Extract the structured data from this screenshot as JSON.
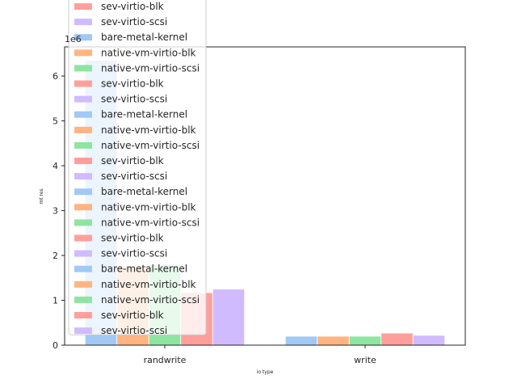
{
  "chart_data": {
    "type": "bar",
    "xlabel": "io type",
    "ylabel": "mt res",
    "offset_label": "1e6",
    "categories": [
      "randwrite",
      "write"
    ],
    "y_ticks": [
      0,
      1,
      2,
      3,
      4,
      5,
      6
    ],
    "ylim": [
      0,
      6.65
    ],
    "y_scale": 1000000,
    "legend_position": "upper-left",
    "series": [
      {
        "name": "bare-metal-kernel",
        "color": "#a1c9f4",
        "values": [
          6.35,
          0.2
        ]
      },
      {
        "name": "native-vm-virtio-blk",
        "color": "#ffb482",
        "values": [
          1.75,
          0.2
        ]
      },
      {
        "name": "native-vm-virtio-scsi",
        "color": "#8de5a1",
        "values": [
          1.8,
          0.2
        ]
      },
      {
        "name": "sev-virtio-blk",
        "color": "#ff9f9b",
        "values": [
          1.17,
          0.27
        ]
      },
      {
        "name": "sev-virtio-scsi",
        "color": "#d0bbff",
        "values": [
          1.25,
          0.22
        ]
      }
    ],
    "legend_entries": [
      {
        "name": "sev-virtio-blk",
        "color": "#ff9f9b"
      },
      {
        "name": "sev-virtio-scsi",
        "color": "#d0bbff"
      },
      {
        "name": "bare-metal-kernel",
        "color": "#a1c9f4"
      },
      {
        "name": "native-vm-virtio-blk",
        "color": "#ffb482"
      },
      {
        "name": "native-vm-virtio-scsi",
        "color": "#8de5a1"
      },
      {
        "name": "sev-virtio-blk",
        "color": "#ff9f9b"
      },
      {
        "name": "sev-virtio-scsi",
        "color": "#d0bbff"
      },
      {
        "name": "bare-metal-kernel",
        "color": "#a1c9f4"
      },
      {
        "name": "native-vm-virtio-blk",
        "color": "#ffb482"
      },
      {
        "name": "native-vm-virtio-scsi",
        "color": "#8de5a1"
      },
      {
        "name": "sev-virtio-blk",
        "color": "#ff9f9b"
      },
      {
        "name": "sev-virtio-scsi",
        "color": "#d0bbff"
      },
      {
        "name": "bare-metal-kernel",
        "color": "#a1c9f4"
      },
      {
        "name": "native-vm-virtio-blk",
        "color": "#ffb482"
      },
      {
        "name": "native-vm-virtio-scsi",
        "color": "#8de5a1"
      },
      {
        "name": "sev-virtio-blk",
        "color": "#ff9f9b"
      },
      {
        "name": "sev-virtio-scsi",
        "color": "#d0bbff"
      },
      {
        "name": "bare-metal-kernel",
        "color": "#a1c9f4"
      },
      {
        "name": "native-vm-virtio-blk",
        "color": "#ffb482"
      },
      {
        "name": "native-vm-virtio-scsi",
        "color": "#8de5a1"
      },
      {
        "name": "sev-virtio-blk",
        "color": "#ff9f9b"
      },
      {
        "name": "sev-virtio-scsi",
        "color": "#d0bbff"
      }
    ]
  }
}
